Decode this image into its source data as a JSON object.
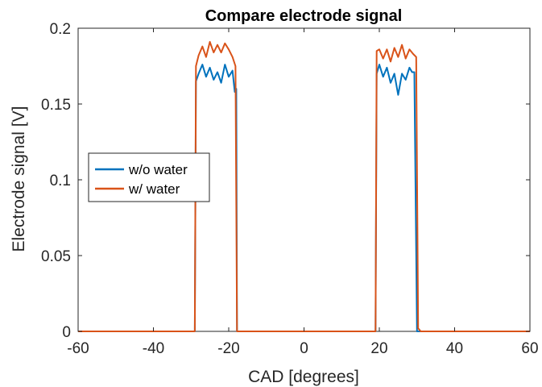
{
  "chart_data": {
    "type": "line",
    "title": "Compare electrode signal",
    "xlabel": "CAD [degrees]",
    "ylabel": "Electrode signal [V]",
    "xlim": [
      -60,
      60
    ],
    "ylim": [
      0,
      0.2
    ],
    "xticks": [
      -60,
      -40,
      -20,
      0,
      20,
      40,
      60
    ],
    "xtick_labels": [
      "-60",
      "-40",
      "-20",
      "0",
      "20",
      "40",
      "60"
    ],
    "yticks": [
      0,
      0.05,
      0.1,
      0.15,
      0.2
    ],
    "ytick_labels": [
      "0",
      "0.05",
      "0.1",
      "0.15",
      "0.2"
    ],
    "grid": false,
    "legend": {
      "placement": "left-center"
    },
    "series": [
      {
        "name": "w/o water",
        "color": "#0072BD",
        "x": [
          -60,
          -29,
          -28.7,
          -28,
          -27,
          -26,
          -25,
          -24,
          -23,
          -22,
          -21,
          -20,
          -19,
          -18.4,
          -18,
          -17.8,
          -17,
          19,
          19.3,
          20,
          21,
          22,
          23,
          24,
          25,
          26,
          27,
          28,
          28.7,
          29.3,
          30,
          60
        ],
        "y": [
          0,
          0,
          0.165,
          0.17,
          0.176,
          0.168,
          0.174,
          0.166,
          0.171,
          0.164,
          0.176,
          0.168,
          0.172,
          0.158,
          0.16,
          0,
          0,
          0,
          0.17,
          0.176,
          0.168,
          0.174,
          0.164,
          0.17,
          0.156,
          0.17,
          0.166,
          0.174,
          0.171,
          0.171,
          0,
          0
        ]
      },
      {
        "name": "w/ water",
        "color": "#D95319",
        "x": [
          -60,
          -29,
          -28.7,
          -28,
          -27,
          -26,
          -25,
          -24,
          -23,
          -22,
          -21,
          -20,
          -19,
          -18.2,
          -17.8,
          -17,
          19,
          19.3,
          20,
          21,
          22,
          23,
          24,
          25,
          26,
          27,
          28,
          29,
          29.8,
          30.3,
          31,
          60
        ],
        "y": [
          0,
          0,
          0.175,
          0.182,
          0.188,
          0.181,
          0.191,
          0.184,
          0.189,
          0.184,
          0.19,
          0.186,
          0.181,
          0.175,
          0,
          0,
          0,
          0.185,
          0.186,
          0.18,
          0.186,
          0.178,
          0.187,
          0.181,
          0.189,
          0.18,
          0.186,
          0.183,
          0.181,
          0.002,
          0,
          0
        ]
      }
    ]
  }
}
